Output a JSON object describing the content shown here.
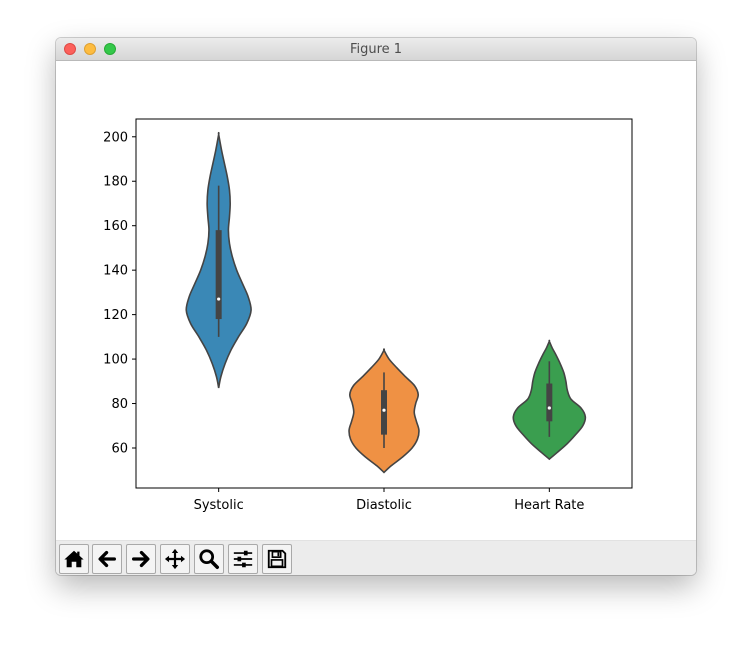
{
  "window": {
    "title": "Figure 1"
  },
  "toolbar": {
    "buttons": [
      {
        "name": "home",
        "icon": "home-icon"
      },
      {
        "name": "back",
        "icon": "arrow-left-icon"
      },
      {
        "name": "forward",
        "icon": "arrow-right-icon"
      },
      {
        "name": "pan",
        "icon": "move-icon"
      },
      {
        "name": "zoom",
        "icon": "search-icon"
      },
      {
        "name": "configure-subplots",
        "icon": "sliders-icon"
      },
      {
        "name": "save",
        "icon": "floppy-disk-icon"
      }
    ]
  },
  "chart_data": {
    "type": "violin",
    "categories": [
      "Systolic",
      "Diastolic",
      "Heart Rate"
    ],
    "ylim": [
      42,
      208
    ],
    "yticks": [
      60,
      80,
      100,
      120,
      140,
      160,
      180,
      200
    ],
    "xlabel": "",
    "ylabel": "",
    "title": "",
    "grid": false,
    "colors": [
      "#3a88b6",
      "#ef9144",
      "#3a9e4f"
    ],
    "violins": [
      {
        "category": "Systolic",
        "range": [
          87,
          201
        ],
        "whisker": [
          110,
          178
        ],
        "quartiles": [
          118,
          158
        ],
        "median": 127,
        "density": [
          [
            87,
            0
          ],
          [
            92,
            0.06
          ],
          [
            98,
            0.18
          ],
          [
            104,
            0.34
          ],
          [
            110,
            0.55
          ],
          [
            116,
            0.78
          ],
          [
            122,
            0.9
          ],
          [
            128,
            0.82
          ],
          [
            134,
            0.66
          ],
          [
            140,
            0.5
          ],
          [
            146,
            0.38
          ],
          [
            152,
            0.3
          ],
          [
            158,
            0.27
          ],
          [
            164,
            0.3
          ],
          [
            170,
            0.32
          ],
          [
            176,
            0.3
          ],
          [
            182,
            0.24
          ],
          [
            188,
            0.16
          ],
          [
            194,
            0.08
          ],
          [
            201,
            0
          ]
        ]
      },
      {
        "category": "Diastolic",
        "range": [
          49,
          104
        ],
        "whisker": [
          60,
          94
        ],
        "quartiles": [
          66,
          86
        ],
        "median": 77,
        "density": [
          [
            49,
            0
          ],
          [
            52,
            0.2
          ],
          [
            56,
            0.52
          ],
          [
            60,
            0.78
          ],
          [
            64,
            0.93
          ],
          [
            68,
            0.97
          ],
          [
            72,
            0.9
          ],
          [
            76,
            0.84
          ],
          [
            80,
            0.88
          ],
          [
            84,
            0.95
          ],
          [
            88,
            0.85
          ],
          [
            92,
            0.6
          ],
          [
            96,
            0.36
          ],
          [
            100,
            0.14
          ],
          [
            104,
            0
          ]
        ]
      },
      {
        "category": "Heart Rate",
        "range": [
          55,
          108
        ],
        "whisker": [
          65,
          99
        ],
        "quartiles": [
          72,
          89
        ],
        "median": 78,
        "density": [
          [
            55,
            0
          ],
          [
            58,
            0.22
          ],
          [
            62,
            0.5
          ],
          [
            66,
            0.73
          ],
          [
            70,
            0.93
          ],
          [
            74,
            1.0
          ],
          [
            78,
            0.88
          ],
          [
            82,
            0.6
          ],
          [
            86,
            0.5
          ],
          [
            90,
            0.46
          ],
          [
            94,
            0.4
          ],
          [
            98,
            0.3
          ],
          [
            102,
            0.18
          ],
          [
            105,
            0.08
          ],
          [
            108,
            0
          ]
        ]
      }
    ]
  }
}
